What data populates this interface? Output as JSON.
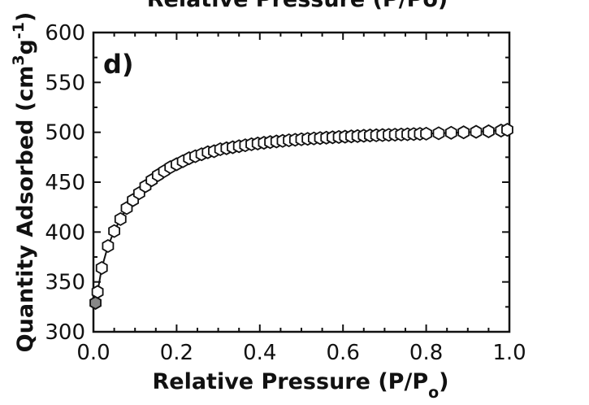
{
  "top_title_fragment": "Relative Pressure (P/Po)",
  "panel_label": "d)",
  "chart_data": {
    "type": "scatter",
    "xlabel": "Relative Pressure (P/Po)",
    "ylabel": "Quantity Adsorbed (cm3g-1)",
    "xlim": [
      0.0,
      1.0
    ],
    "ylim": [
      300,
      600
    ],
    "xticks": [
      0.0,
      0.2,
      0.4,
      0.6,
      0.8,
      1.0
    ],
    "xtick_labels": [
      "0.0",
      "0.2",
      "0.4",
      "0.6",
      "0.8",
      "1.0"
    ],
    "yticks": [
      300,
      350,
      400,
      450,
      500,
      550,
      600
    ],
    "ytick_labels": [
      "300",
      "350",
      "400",
      "450",
      "500",
      "550",
      "600"
    ],
    "grid": false,
    "series": [
      {
        "marker": "filled-hexagon",
        "color": "#888888",
        "x": [
          0.005
        ],
        "y": [
          329
        ]
      },
      {
        "marker": "open-hexagon",
        "color": "#ffffff",
        "x": [
          0.01,
          0.02,
          0.035,
          0.05,
          0.065,
          0.08,
          0.095,
          0.11,
          0.125,
          0.14,
          0.155,
          0.17,
          0.185,
          0.2,
          0.215,
          0.23,
          0.245,
          0.26,
          0.275,
          0.29,
          0.305,
          0.32,
          0.335,
          0.35,
          0.365,
          0.38,
          0.395,
          0.41,
          0.425,
          0.44,
          0.455,
          0.47,
          0.485,
          0.5,
          0.515,
          0.53,
          0.545,
          0.56,
          0.575,
          0.59,
          0.605,
          0.62,
          0.635,
          0.65,
          0.665,
          0.68,
          0.695,
          0.71,
          0.725,
          0.74,
          0.755,
          0.77,
          0.785,
          0.8,
          0.83,
          0.86,
          0.89,
          0.92,
          0.95,
          0.98,
          0.995
        ],
        "y": [
          340,
          364,
          386,
          401,
          413,
          424,
          432,
          439,
          446,
          452,
          457,
          461,
          465,
          468,
          471,
          474,
          476,
          478,
          480,
          481,
          483,
          484,
          485,
          486,
          487,
          488,
          488.8,
          489.5,
          490.2,
          490.8,
          491.4,
          492,
          492.5,
          493,
          493.4,
          493.8,
          494.2,
          494.6,
          495,
          495.3,
          495.6,
          495.9,
          496.2,
          496.5,
          496.8,
          497,
          497.2,
          497.4,
          497.6,
          497.8,
          498,
          498.2,
          498.4,
          498.6,
          499,
          499.5,
          500,
          500.5,
          501,
          501.7,
          502.5
        ]
      }
    ],
    "curve": {
      "x": [
        0.002,
        0.01,
        0.02,
        0.035,
        0.05,
        0.065,
        0.08,
        0.095,
        0.11,
        0.14,
        0.17,
        0.2,
        0.25,
        0.3,
        0.35,
        0.4,
        0.45,
        0.5,
        0.6,
        0.7,
        0.8,
        0.9,
        1.0
      ],
      "y": [
        326,
        340,
        364,
        386,
        401,
        413,
        424,
        432,
        439,
        452,
        461,
        468,
        477,
        482.5,
        486,
        489,
        491.2,
        493,
        495.5,
        497.2,
        498.6,
        500,
        502.5
      ]
    }
  }
}
